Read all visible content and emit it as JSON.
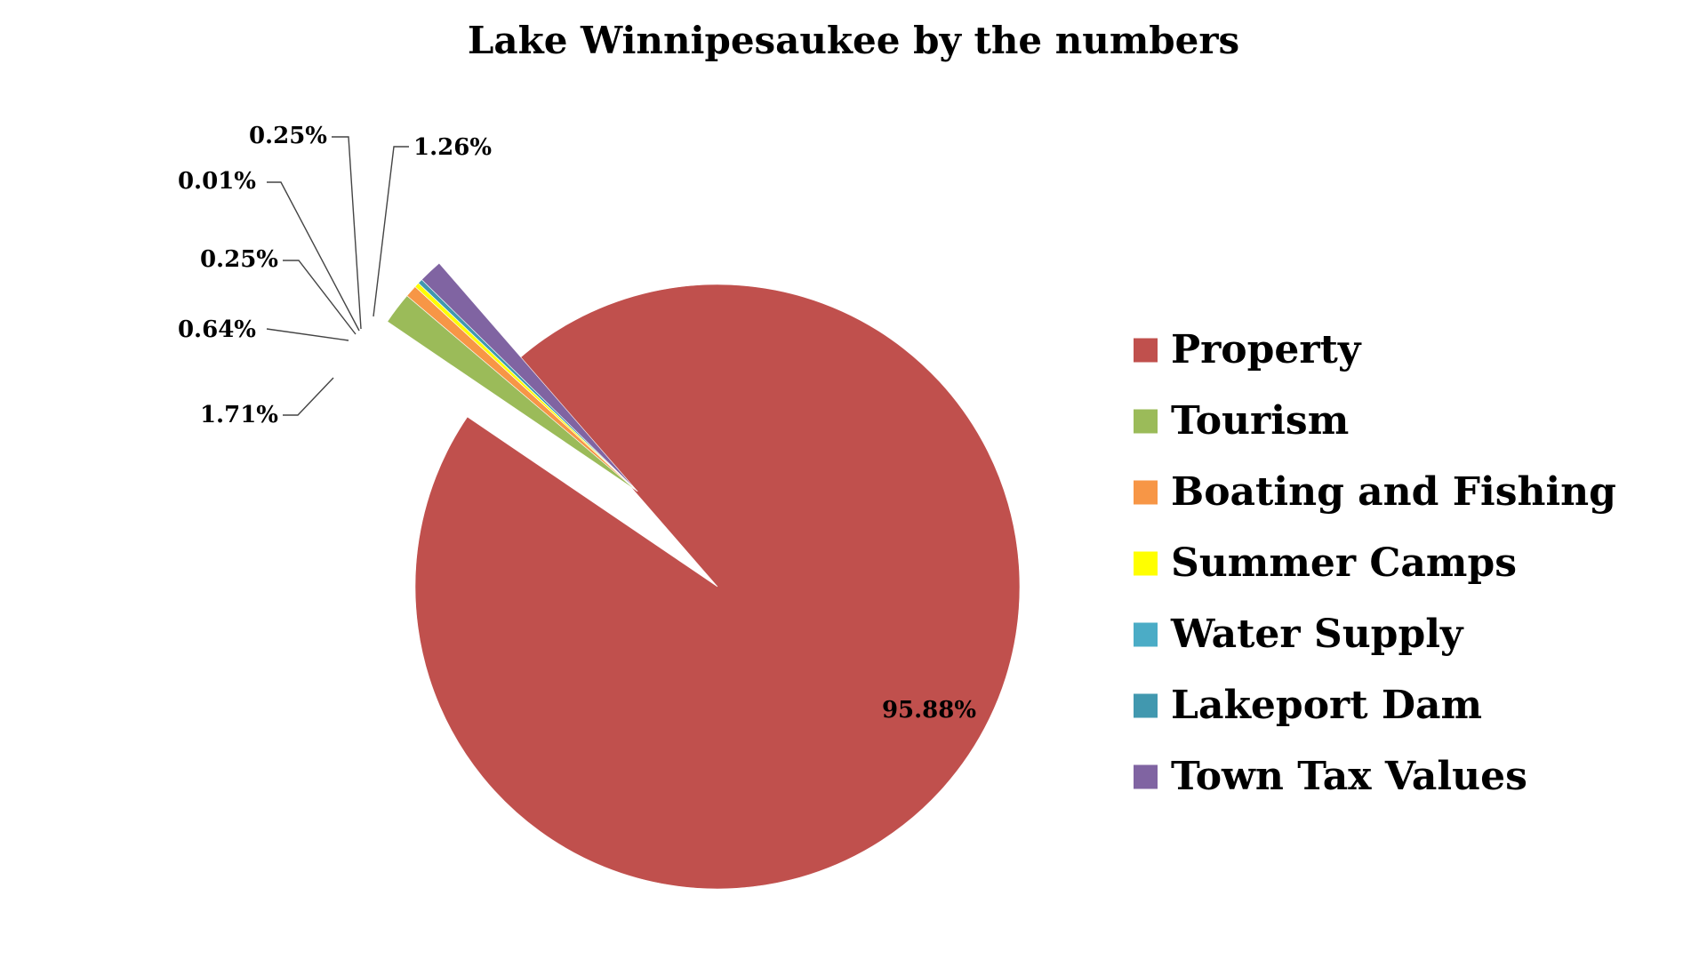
{
  "chart_data": {
    "type": "pie",
    "title": "Lake Winnipesaukee by the numbers",
    "categories": [
      "Property",
      "Tourism",
      "Boating and Fishing",
      "Summer Camps",
      "Water Supply",
      "Lakeport Dam",
      "Town Tax Values"
    ],
    "values": [
      95.88,
      1.71,
      0.64,
      0.25,
      0.01,
      0.25,
      1.26
    ],
    "data_labels": [
      "95.88%",
      "1.71%",
      "0.64%",
      "0.25%",
      "0.01%",
      "0.25%",
      "1.26%"
    ],
    "colors": [
      "#C0504D",
      "#9BBB59",
      "#F79646",
      "#FFFF00",
      "#4BACC6",
      "#4198AF",
      "#8064A2"
    ],
    "legend_position": "right",
    "exploded_slices": [
      "Tourism",
      "Boating and Fishing",
      "Summer Camps",
      "Water Supply",
      "Lakeport Dam",
      "Town Tax Values"
    ]
  }
}
